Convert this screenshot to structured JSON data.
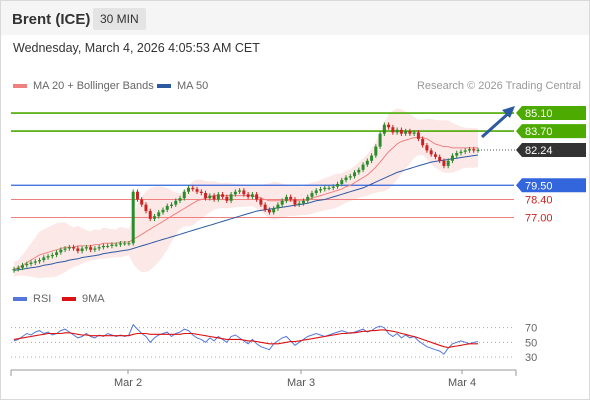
{
  "header": {
    "title": "Brent (ICE)",
    "timeframe": "30 MIN"
  },
  "datetime": "Wednesday, March 4, 2026 4:05:53 AM CET",
  "legend": {
    "ma20": "MA 20 + Bollinger Bands",
    "ma50": "MA 50",
    "credit": "Research © 2026 Trading Central",
    "rsi": "RSI",
    "rsi_ma": "9MA"
  },
  "colors": {
    "ma20": "#f08080",
    "ma50": "#2c5aa0",
    "band_fill": "#fde2e2",
    "resistance": "#4caa00",
    "support_blue": "#3366dd",
    "support_red": "#f08080",
    "candle": "#2a8c2a",
    "candle_down": "#cc2222",
    "rsi": "#5577dd",
    "rsi_ma": "#dd1111",
    "current_price_box": "#333333"
  },
  "levels": {
    "r2": "85.10",
    "r1": "83.70",
    "current": "82.24",
    "pivot": "79.50",
    "s1": "78.40",
    "s2": "77.00"
  },
  "x_labels": [
    "Mar 2",
    "Mar 3",
    "Mar 4"
  ],
  "rsi_levels": [
    "70",
    "50",
    "30"
  ],
  "chart_data": {
    "type": "candlestick",
    "title": "Brent (ICE)",
    "timeframe": "30 MIN",
    "y_range": [
      72.0,
      86.5
    ],
    "x_labels": [
      "Mar 2",
      "Mar 3",
      "Mar 4"
    ],
    "levels": [
      85.1,
      83.7,
      82.24,
      79.5,
      78.4,
      77.0
    ],
    "close": [
      73.0,
      73.1,
      73.3,
      73.4,
      73.5,
      73.6,
      73.7,
      73.9,
      74.0,
      74.1,
      74.3,
      74.5,
      74.6,
      74.7,
      74.6,
      74.4,
      74.6,
      74.7,
      74.5,
      74.6,
      74.7,
      74.8,
      74.8,
      74.9,
      74.9,
      75.0,
      75.0,
      75.0,
      79.0,
      78.4,
      78.0,
      77.5,
      76.9,
      77.1,
      77.4,
      77.6,
      77.9,
      78.0,
      78.3,
      78.5,
      79.0,
      79.3,
      79.2,
      79.0,
      78.9,
      78.5,
      78.7,
      78.4,
      78.8,
      78.6,
      78.3,
      78.8,
      79.0,
      79.1,
      78.8,
      78.6,
      78.8,
      78.4,
      78.0,
      77.6,
      77.4,
      77.7,
      78.0,
      78.3,
      78.6,
      78.4,
      78.0,
      78.1,
      78.3,
      78.6,
      78.9,
      79.1,
      79.2,
      79.3,
      79.3,
      79.4,
      79.6,
      79.9,
      80.1,
      80.2,
      80.5,
      80.7,
      81.1,
      81.4,
      81.8,
      82.5,
      83.5,
      84.2,
      84.0,
      83.6,
      83.8,
      83.5,
      83.7,
      83.5,
      83.6,
      83.1,
      82.6,
      82.2,
      81.9,
      81.7,
      81.4,
      81.0,
      81.4,
      81.8,
      82.0,
      82.1,
      82.2,
      82.3,
      82.2,
      82.24
    ],
    "ma20": [
      73.0,
      73.1,
      73.3,
      73.5,
      73.7,
      73.9,
      74.1,
      74.2,
      74.3,
      74.4,
      74.5,
      74.6,
      74.7,
      74.7,
      74.7,
      74.8,
      74.8,
      74.8,
      74.8,
      74.9,
      74.9,
      75.0,
      75.0,
      75.0,
      75.0,
      75.1,
      75.1,
      75.1,
      75.3,
      75.5,
      75.7,
      75.9,
      76.1,
      76.3,
      76.5,
      76.7,
      76.9,
      77.1,
      77.3,
      77.5,
      77.7,
      77.9,
      78.1,
      78.3,
      78.4,
      78.5,
      78.6,
      78.7,
      78.7,
      78.7,
      78.7,
      78.7,
      78.7,
      78.7,
      78.7,
      78.7,
      78.7,
      78.6,
      78.5,
      78.4,
      78.3,
      78.3,
      78.3,
      78.3,
      78.3,
      78.3,
      78.3,
      78.3,
      78.3,
      78.4,
      78.5,
      78.6,
      78.7,
      78.8,
      78.9,
      79.0,
      79.1,
      79.2,
      79.4,
      79.5,
      79.7,
      79.9,
      80.1,
      80.3,
      80.6,
      80.9,
      81.3,
      81.7,
      82.1,
      82.4,
      82.7,
      82.9,
      83.0,
      83.1,
      83.2,
      83.2,
      83.2,
      83.1,
      82.9,
      82.7,
      82.6,
      82.5,
      82.5,
      82.4,
      82.4,
      82.4,
      82.4,
      82.4,
      82.4,
      82.4
    ],
    "ma50": [
      72.9,
      72.95,
      73.0,
      73.05,
      73.1,
      73.15,
      73.2,
      73.3,
      73.35,
      73.4,
      73.5,
      73.55,
      73.6,
      73.7,
      73.75,
      73.8,
      73.9,
      73.95,
      74.0,
      74.05,
      74.1,
      74.2,
      74.25,
      74.3,
      74.35,
      74.4,
      74.45,
      74.5,
      74.6,
      74.7,
      74.8,
      74.9,
      75.0,
      75.1,
      75.2,
      75.3,
      75.4,
      75.5,
      75.6,
      75.7,
      75.8,
      75.9,
      76.0,
      76.1,
      76.2,
      76.3,
      76.4,
      76.5,
      76.6,
      76.7,
      76.8,
      76.9,
      77.0,
      77.1,
      77.2,
      77.3,
      77.4,
      77.5,
      77.55,
      77.6,
      77.65,
      77.7,
      77.75,
      77.8,
      77.85,
      77.9,
      77.95,
      78.0,
      78.05,
      78.1,
      78.2,
      78.3,
      78.35,
      78.4,
      78.5,
      78.6,
      78.7,
      78.8,
      78.9,
      79.0,
      79.1,
      79.2,
      79.3,
      79.45,
      79.6,
      79.75,
      79.9,
      80.05,
      80.2,
      80.35,
      80.5,
      80.6,
      80.7,
      80.8,
      80.9,
      81.0,
      81.1,
      81.2,
      81.3,
      81.35,
      81.4,
      81.45,
      81.5,
      81.55,
      81.6,
      81.65,
      81.7,
      81.75,
      81.8,
      81.85
    ],
    "rsi": [
      52,
      54,
      58,
      62,
      60,
      64,
      66,
      62,
      64,
      60,
      62,
      66,
      68,
      64,
      60,
      56,
      58,
      62,
      58,
      56,
      60,
      58,
      62,
      60,
      58,
      60,
      58,
      60,
      74,
      68,
      62,
      58,
      50,
      56,
      60,
      62,
      64,
      58,
      62,
      64,
      68,
      66,
      60,
      56,
      54,
      50,
      56,
      52,
      58,
      54,
      50,
      58,
      60,
      56,
      52,
      48,
      54,
      48,
      44,
      42,
      40,
      48,
      52,
      56,
      58,
      52,
      46,
      50,
      54,
      58,
      60,
      62,
      60,
      58,
      60,
      62,
      64,
      66,
      64,
      62,
      64,
      66,
      68,
      64,
      66,
      70,
      72,
      70,
      62,
      58,
      62,
      56,
      60,
      56,
      58,
      52,
      48,
      44,
      42,
      40,
      38,
      34,
      42,
      48,
      50,
      52,
      50,
      48,
      50,
      51
    ],
    "rsi_ma": [
      54,
      55,
      56,
      57,
      58,
      59,
      60,
      61,
      62,
      62,
      62,
      62,
      63,
      63,
      62,
      61,
      60,
      60,
      59,
      59,
      59,
      59,
      59,
      59,
      59,
      59,
      59,
      59,
      61,
      62,
      62,
      62,
      61,
      61,
      61,
      61,
      61,
      61,
      61,
      61,
      62,
      62,
      62,
      61,
      60,
      59,
      58,
      57,
      56,
      55,
      54,
      54,
      54,
      54,
      53,
      52,
      52,
      51,
      50,
      49,
      48,
      48,
      48,
      49,
      50,
      51,
      51,
      52,
      53,
      54,
      55,
      56,
      57,
      58,
      59,
      60,
      61,
      62,
      62,
      63,
      63,
      64,
      65,
      65,
      66,
      66,
      67,
      67,
      66,
      65,
      64,
      62,
      61,
      59,
      58,
      56,
      54,
      52,
      50,
      48,
      46,
      44,
      43,
      44,
      45,
      46,
      47,
      48,
      48,
      48
    ]
  }
}
